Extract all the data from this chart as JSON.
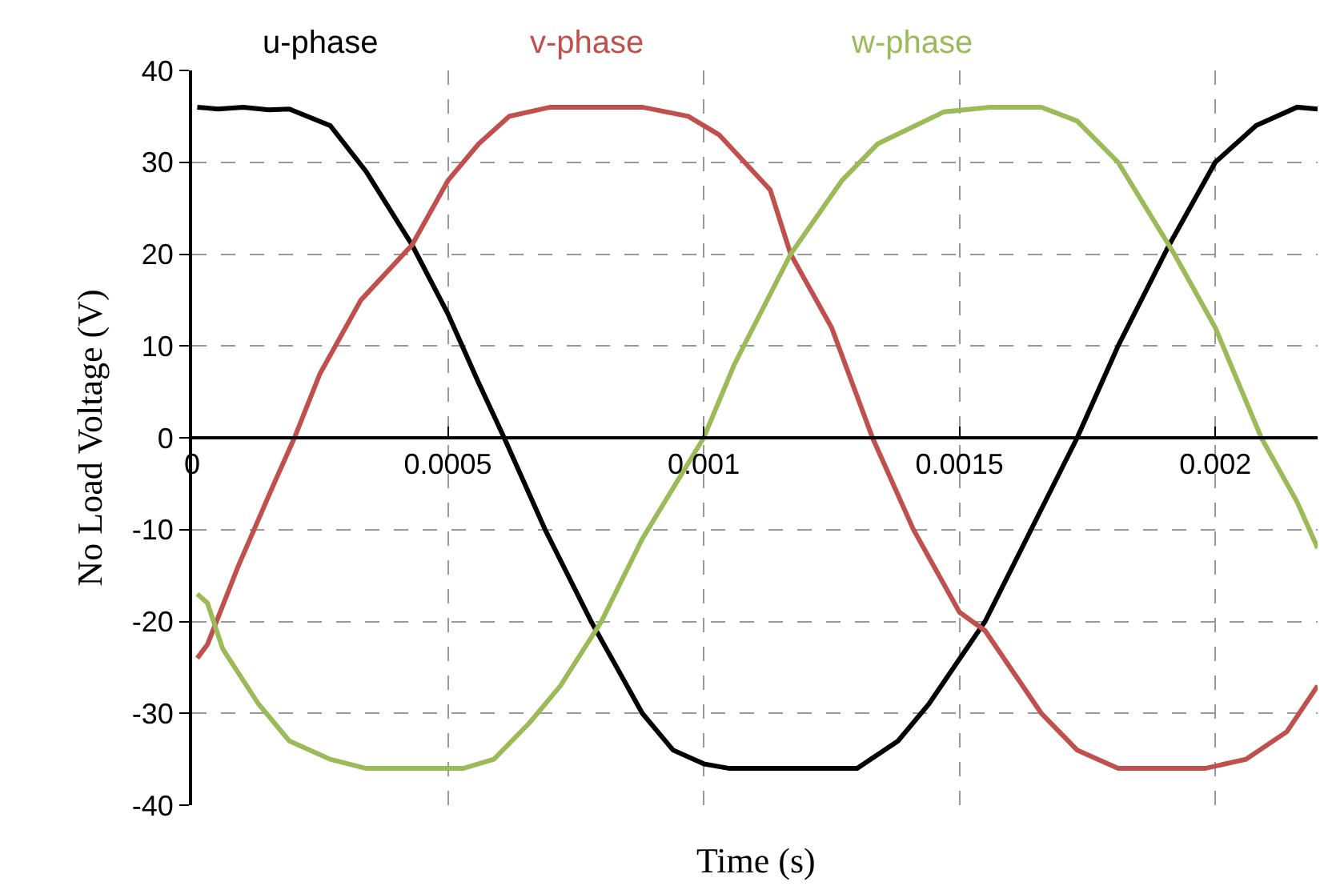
{
  "chart_data": {
    "type": "line",
    "xlabel": "Time (s)",
    "ylabel": "No Load Voltage (V)",
    "xlim": [
      0,
      0.0022
    ],
    "xticks": [
      0,
      0.0005,
      0.001,
      0.0015,
      0.002
    ],
    "ylim": [
      -40,
      40
    ],
    "yticks": [
      -40,
      -30,
      -20,
      -10,
      0,
      10,
      20,
      30,
      40
    ],
    "grid": true,
    "legend": "top",
    "line_style": "solid",
    "marker": "none",
    "series": [
      {
        "name": "u-phase",
        "color": "#000000",
        "x": [
          1e-05,
          5e-05,
          0.0001,
          0.00015,
          0.00019,
          0.00027,
          0.00034,
          0.00043,
          0.0005,
          0.00056,
          0.00061,
          0.00069,
          0.00078,
          0.00088,
          0.00094,
          0.001,
          0.00105,
          0.0012,
          0.0013,
          0.00138,
          0.00144,
          0.00155,
          0.00164,
          0.00173,
          0.00181,
          0.00191,
          0.002,
          0.00208,
          0.00216,
          0.0022
        ],
        "values": [
          36,
          35.8,
          36,
          35.7,
          35.8,
          34,
          29,
          21,
          13.5,
          6,
          0,
          -10,
          -20,
          -30,
          -34,
          -35.5,
          -36,
          -36,
          -36,
          -33,
          -29,
          -20,
          -10,
          0,
          10,
          21,
          30,
          34,
          36,
          35.8
        ]
      },
      {
        "name": "v-phase",
        "color": "#c0504d",
        "x": [
          1e-05,
          3e-05,
          9e-05,
          0.00016,
          0.0002,
          0.00025,
          0.00033,
          0.00043,
          0.0005,
          0.00056,
          0.00062,
          0.0007,
          0.0008,
          0.00088,
          0.00097,
          0.00103,
          0.00113,
          0.00117,
          0.00125,
          0.00133,
          0.00141,
          0.0015,
          0.00155,
          0.00166,
          0.00173,
          0.00181,
          0.0019,
          0.00198,
          0.00206,
          0.00214,
          0.0022
        ],
        "values": [
          -24,
          -22.5,
          -14,
          -5,
          0,
          7,
          15,
          21,
          28,
          32,
          35,
          36,
          36,
          36,
          35,
          33,
          27,
          20,
          12,
          0,
          -10,
          -19,
          -21,
          -30,
          -34,
          -36,
          -36,
          -36,
          -35,
          -32,
          -27
        ]
      },
      {
        "name": "w-phase",
        "color": "#9bbb59",
        "x": [
          1e-05,
          3e-05,
          6e-05,
          0.00013,
          0.00019,
          0.00027,
          0.00034,
          0.00045,
          0.00053,
          0.00059,
          0.00066,
          0.00072,
          0.0008,
          0.00088,
          0.001,
          0.00106,
          0.00117,
          0.00127,
          0.00134,
          0.00147,
          0.00156,
          0.00166,
          0.00173,
          0.00181,
          0.00192,
          0.002,
          0.00209,
          0.00216,
          0.0022
        ],
        "values": [
          -17,
          -18,
          -23,
          -29,
          -33,
          -35,
          -36,
          -36,
          -36,
          -35,
          -31,
          -27,
          -20,
          -11,
          0,
          8,
          20,
          28,
          32,
          35.5,
          36,
          36,
          34.5,
          30,
          20,
          12,
          0,
          -7,
          -12
        ]
      }
    ]
  }
}
